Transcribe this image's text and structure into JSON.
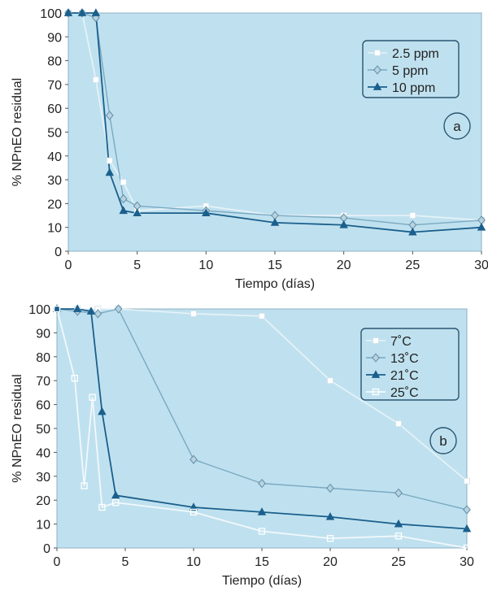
{
  "chart_data": [
    {
      "type": "line",
      "panel_label": "a",
      "xlabel": "Tiempo (días)",
      "ylabel": "% NPnEO residual",
      "xlim": [
        0,
        30
      ],
      "ylim": [
        0,
        100
      ],
      "x_ticks": [
        0,
        5,
        10,
        15,
        20,
        25,
        30
      ],
      "y_ticks": [
        0,
        10,
        20,
        30,
        40,
        50,
        60,
        70,
        80,
        90,
        100
      ],
      "legend_position": "top-right",
      "series": [
        {
          "name": "2.5 ppm",
          "marker": "square",
          "color": "#ffffff",
          "x": [
            0,
            1,
            2,
            3,
            4,
            5,
            10,
            15,
            20,
            25,
            30
          ],
          "y": [
            100,
            100,
            72,
            38,
            29,
            17,
            19,
            15,
            15,
            15,
            13
          ]
        },
        {
          "name": "5 ppm",
          "marker": "diamond",
          "color": "#8fb4c8",
          "x": [
            0,
            1,
            2,
            3,
            4,
            5,
            10,
            15,
            20,
            25,
            30
          ],
          "y": [
            100,
            100,
            98,
            57,
            22,
            19,
            17,
            15,
            14,
            11,
            13
          ]
        },
        {
          "name": "10 ppm",
          "marker": "triangle",
          "color": "#1b5f8c",
          "x": [
            0,
            1,
            2,
            3,
            4,
            5,
            10,
            15,
            20,
            25,
            30
          ],
          "y": [
            100,
            100,
            100,
            33,
            17,
            16,
            16,
            12,
            11,
            8,
            10
          ]
        }
      ]
    },
    {
      "type": "line",
      "panel_label": "b",
      "xlabel": "Tiempo (días)",
      "ylabel": "% NPnEO residual",
      "xlim": [
        0,
        30
      ],
      "ylim": [
        0,
        100
      ],
      "x_ticks": [
        0,
        5,
        10,
        15,
        20,
        25,
        30
      ],
      "y_ticks": [
        0,
        10,
        20,
        30,
        40,
        50,
        60,
        70,
        80,
        90,
        100
      ],
      "legend_position": "top-right",
      "series": [
        {
          "name": "7˚C",
          "marker": "square",
          "color": "#ffffff",
          "x": [
            0,
            1.5,
            3,
            4.5,
            10,
            15,
            20,
            25,
            30
          ],
          "y": [
            100,
            100,
            100,
            100,
            98,
            97,
            70,
            52,
            28
          ]
        },
        {
          "name": "13˚C",
          "marker": "diamond",
          "color": "#8fb4c8",
          "x": [
            0,
            1.5,
            3,
            4.5,
            10,
            15,
            20,
            25,
            30
          ],
          "y": [
            100,
            99,
            98,
            100,
            37,
            27,
            25,
            23,
            16
          ]
        },
        {
          "name": "21˚C",
          "marker": "triangle",
          "color": "#1b5f8c",
          "x": [
            0,
            1.5,
            2.5,
            3.3,
            4.3,
            10,
            15,
            20,
            25,
            30
          ],
          "y": [
            100,
            100,
            99,
            57,
            22,
            17,
            15,
            13,
            10,
            8
          ]
        },
        {
          "name": "25˚C",
          "marker": "square-open",
          "color": "#dbe9f1",
          "x": [
            0,
            1.3,
            2,
            2.6,
            3.3,
            4.3,
            10,
            15,
            20,
            25,
            30
          ],
          "y": [
            100,
            71,
            26,
            63,
            17,
            19,
            15,
            7,
            4,
            5,
            0
          ]
        }
      ]
    }
  ]
}
